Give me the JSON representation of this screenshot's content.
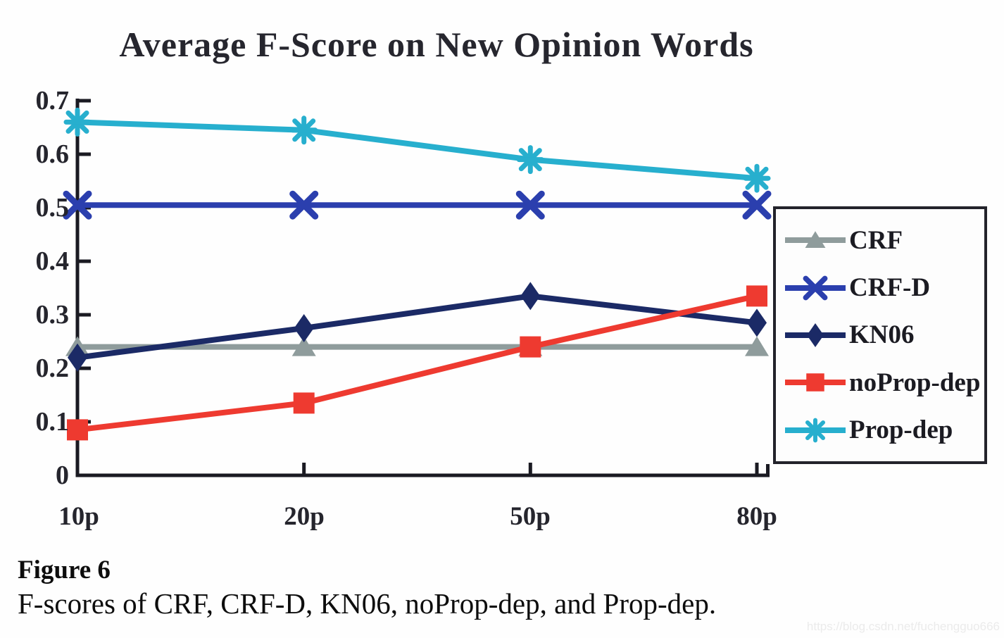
{
  "caption": {
    "label": "Figure 6",
    "text": "F-scores of CRF, CRF-D, KN06, noProp-dep, and Prop-dep."
  },
  "watermark": "https://blog.csdn.net/fuchengguo666",
  "chart_data": {
    "type": "line",
    "title": "Average F-Score on New Opinion Words",
    "xlabel": "",
    "ylabel": "",
    "categories": [
      "10p",
      "20p",
      "50p",
      "80p"
    ],
    "series": [
      {
        "name": "CRF",
        "marker": "triangle",
        "color": "#8f9c9c",
        "values": [
          0.24,
          0.24,
          0.24,
          0.24
        ]
      },
      {
        "name": "CRF-D",
        "marker": "x",
        "color": "#2b3fae",
        "values": [
          0.505,
          0.505,
          0.505,
          0.505
        ]
      },
      {
        "name": "KN06",
        "marker": "diamond",
        "color": "#1b2a66",
        "values": [
          0.22,
          0.275,
          0.335,
          0.285
        ]
      },
      {
        "name": "noProp-dep",
        "marker": "square",
        "color": "#ee3a30",
        "values": [
          0.085,
          0.135,
          0.24,
          0.335
        ]
      },
      {
        "name": "Prop-dep",
        "marker": "asterisk",
        "color": "#27afce",
        "values": [
          0.66,
          0.645,
          0.59,
          0.555
        ]
      }
    ],
    "ylim": [
      0,
      0.7
    ],
    "y_ticks": [
      0,
      0.1,
      0.2,
      0.3,
      0.4,
      0.5,
      0.6,
      0.7
    ],
    "y_tick_labels": [
      "0.7",
      "0.6",
      "0.5",
      "0.4",
      "0.3",
      "0.2",
      "0.1",
      "0"
    ],
    "legend_position": "right",
    "grid": false,
    "axis_color": "#1a1a22"
  }
}
